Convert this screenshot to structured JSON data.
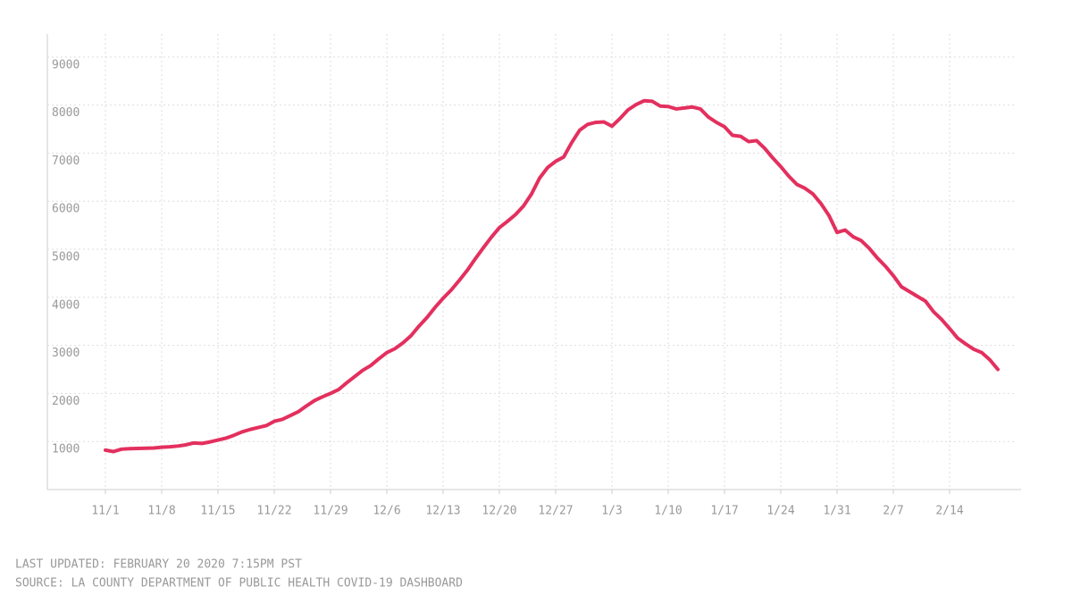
{
  "chart_data": {
    "type": "line",
    "categories": [
      "11/1",
      null,
      null,
      null,
      null,
      null,
      null,
      "11/8",
      null,
      null,
      null,
      null,
      null,
      null,
      "11/15",
      null,
      null,
      null,
      null,
      null,
      null,
      "11/22",
      null,
      null,
      null,
      null,
      null,
      null,
      "11/29",
      null,
      null,
      null,
      null,
      null,
      null,
      "12/6",
      null,
      null,
      null,
      null,
      null,
      null,
      "12/13",
      null,
      null,
      null,
      null,
      null,
      null,
      "12/20",
      null,
      null,
      null,
      null,
      null,
      null,
      "12/27",
      null,
      null,
      null,
      null,
      null,
      null,
      "1/3",
      null,
      null,
      null,
      null,
      null,
      null,
      "1/10",
      null,
      null,
      null,
      null,
      null,
      null,
      "1/17",
      null,
      null,
      null,
      null,
      null,
      null,
      "1/24",
      null,
      null,
      null,
      null,
      null,
      null,
      "1/31",
      null,
      null,
      null,
      null,
      null,
      null,
      "2/7",
      null,
      null,
      null,
      null,
      null,
      null,
      "2/14",
      null,
      null,
      null,
      null,
      null,
      null
    ],
    "series": [
      {
        "color": "#e3305e",
        "values": [
          820,
          790,
          840,
          850,
          855,
          860,
          865,
          880,
          890,
          905,
          930,
          970,
          960,
          990,
          1030,
          1070,
          1130,
          1200,
          1250,
          1290,
          1330,
          1420,
          1460,
          1540,
          1620,
          1740,
          1850,
          1930,
          2000,
          2080,
          2220,
          2350,
          2480,
          2580,
          2720,
          2850,
          2930,
          3050,
          3200,
          3400,
          3580,
          3790,
          3980,
          4150,
          4350,
          4560,
          4800,
          5030,
          5250,
          5450,
          5580,
          5720,
          5900,
          6150,
          6480,
          6700,
          6830,
          6920,
          7220,
          7480,
          7600,
          7640,
          7650,
          7560,
          7720,
          7900,
          8010,
          8090,
          8080,
          7980,
          7970,
          7920,
          7940,
          7960,
          7920,
          7750,
          7640,
          7550,
          7370,
          7350,
          7240,
          7260,
          7100,
          6900,
          6720,
          6520,
          6350,
          6270,
          6150,
          5950,
          5700,
          5350,
          5400,
          5260,
          5180,
          5020,
          4820,
          4650,
          4450,
          4220,
          4120,
          4020,
          3920,
          3700,
          3540,
          3350,
          3150,
          3030,
          2920,
          2850,
          2700,
          2500
        ]
      }
    ],
    "ylim": [
      0,
      9480
    ],
    "yticks": [
      1000,
      2000,
      3000,
      4000,
      5000,
      6000,
      7000,
      8000,
      9000
    ],
    "grid": true,
    "annotations": [
      "LAST UPDATED: FEBRUARY 20 2020 7:15PM PST",
      "SOURCE: LA COUNTY DEPARTMENT OF PUBLIC HEALTH COVID-19 DASHBOARD"
    ]
  }
}
